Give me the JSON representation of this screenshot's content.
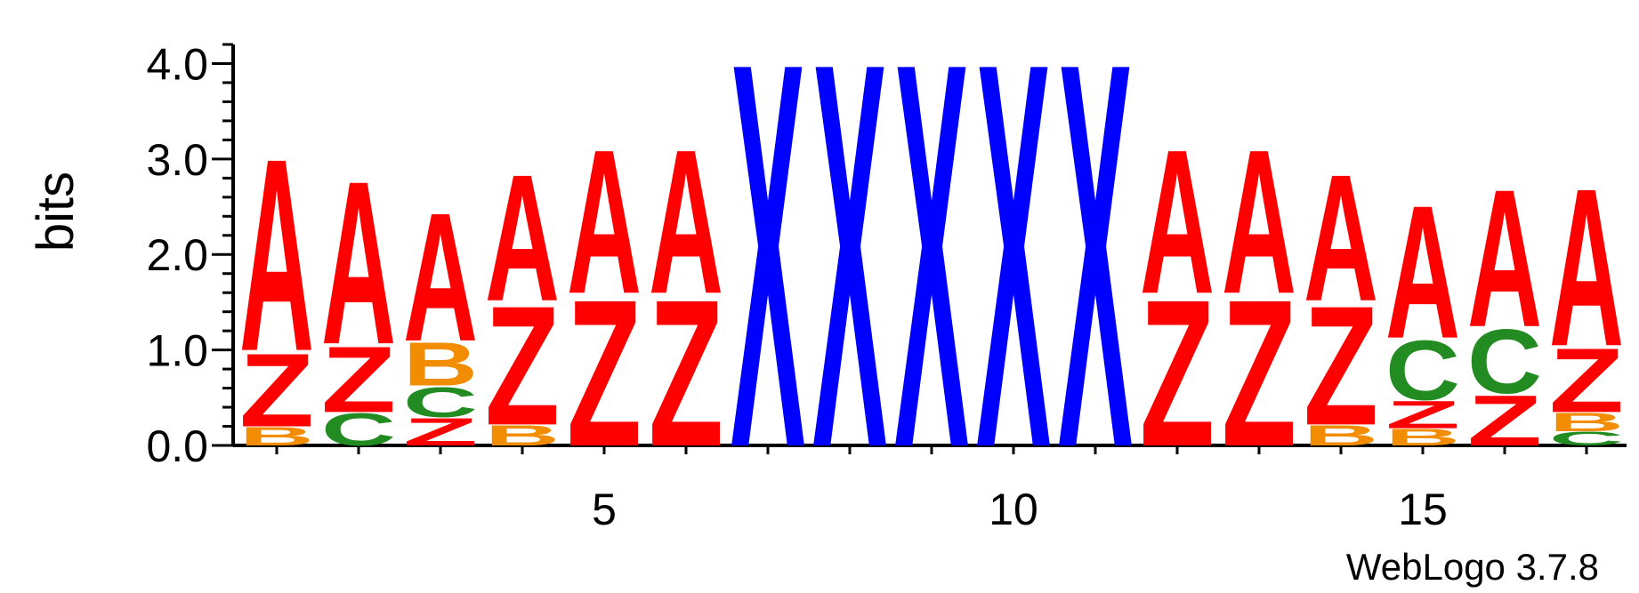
{
  "chart_data": {
    "type": "sequence-logo",
    "ylabel": "bits",
    "ylim": [
      0,
      4.2
    ],
    "yticks": [
      "0.0",
      "1.0",
      "2.0",
      "3.0",
      "4.0"
    ],
    "ytick_values": [
      0,
      1,
      2,
      3,
      4
    ],
    "xlim": [
      0.5,
      17.5
    ],
    "xticks": [
      "5",
      "10",
      "15"
    ],
    "xtick_values": [
      5,
      10,
      15
    ],
    "credit": "WebLogo 3.7.8",
    "colors": {
      "A": "#ff0000",
      "Z": "#ff0000",
      "X": "#0000ff",
      "B": "#f28c00",
      "C": "#228b22"
    },
    "positions": [
      {
        "pos": 1,
        "stack": [
          {
            "letter": "B",
            "bits": 0.2
          },
          {
            "letter": "Z",
            "bits": 0.8
          },
          {
            "letter": "A",
            "bits": 2.1
          }
        ]
      },
      {
        "pos": 2,
        "stack": [
          {
            "letter": "C",
            "bits": 0.35
          },
          {
            "letter": "Z",
            "bits": 0.72
          },
          {
            "letter": "A",
            "bits": 1.78
          }
        ]
      },
      {
        "pos": 3,
        "stack": [
          {
            "letter": "Z",
            "bits": 0.3
          },
          {
            "letter": "C",
            "bits": 0.33
          },
          {
            "letter": "B",
            "bits": 0.47
          },
          {
            "letter": "A",
            "bits": 1.4
          }
        ]
      },
      {
        "pos": 4,
        "stack": [
          {
            "letter": "B",
            "bits": 0.22
          },
          {
            "letter": "Z",
            "bits": 1.3
          },
          {
            "letter": "A",
            "bits": 1.38
          }
        ]
      },
      {
        "pos": 5,
        "stack": [
          {
            "letter": "Z",
            "bits": 1.6
          },
          {
            "letter": "A",
            "bits": 1.57
          }
        ]
      },
      {
        "pos": 6,
        "stack": [
          {
            "letter": "Z",
            "bits": 1.6
          },
          {
            "letter": "A",
            "bits": 1.57
          }
        ]
      },
      {
        "pos": 7,
        "stack": [
          {
            "letter": "X",
            "bits": 4.2
          }
        ]
      },
      {
        "pos": 8,
        "stack": [
          {
            "letter": "X",
            "bits": 4.2
          }
        ]
      },
      {
        "pos": 9,
        "stack": [
          {
            "letter": "X",
            "bits": 4.2
          }
        ]
      },
      {
        "pos": 10,
        "stack": [
          {
            "letter": "X",
            "bits": 4.2
          }
        ]
      },
      {
        "pos": 11,
        "stack": [
          {
            "letter": "X",
            "bits": 4.2
          }
        ]
      },
      {
        "pos": 12,
        "stack": [
          {
            "letter": "Z",
            "bits": 1.6
          },
          {
            "letter": "A",
            "bits": 1.57
          }
        ]
      },
      {
        "pos": 13,
        "stack": [
          {
            "letter": "Z",
            "bits": 1.6
          },
          {
            "letter": "A",
            "bits": 1.57
          }
        ]
      },
      {
        "pos": 14,
        "stack": [
          {
            "letter": "B",
            "bits": 0.22
          },
          {
            "letter": "Z",
            "bits": 1.3
          },
          {
            "letter": "A",
            "bits": 1.38
          }
        ]
      },
      {
        "pos": 15,
        "stack": [
          {
            "letter": "B",
            "bits": 0.18
          },
          {
            "letter": "Z",
            "bits": 0.3
          },
          {
            "letter": "C",
            "bits": 0.65
          },
          {
            "letter": "A",
            "bits": 1.45
          }
        ]
      },
      {
        "pos": 16,
        "stack": [
          {
            "letter": "Z",
            "bits": 0.55
          },
          {
            "letter": "C",
            "bits": 0.7
          },
          {
            "letter": "A",
            "bits": 1.5
          }
        ]
      },
      {
        "pos": 17,
        "stack": [
          {
            "letter": "C",
            "bits": 0.15
          },
          {
            "letter": "B",
            "bits": 0.2
          },
          {
            "letter": "Z",
            "bits": 0.7
          },
          {
            "letter": "A",
            "bits": 1.72
          }
        ]
      }
    ]
  }
}
